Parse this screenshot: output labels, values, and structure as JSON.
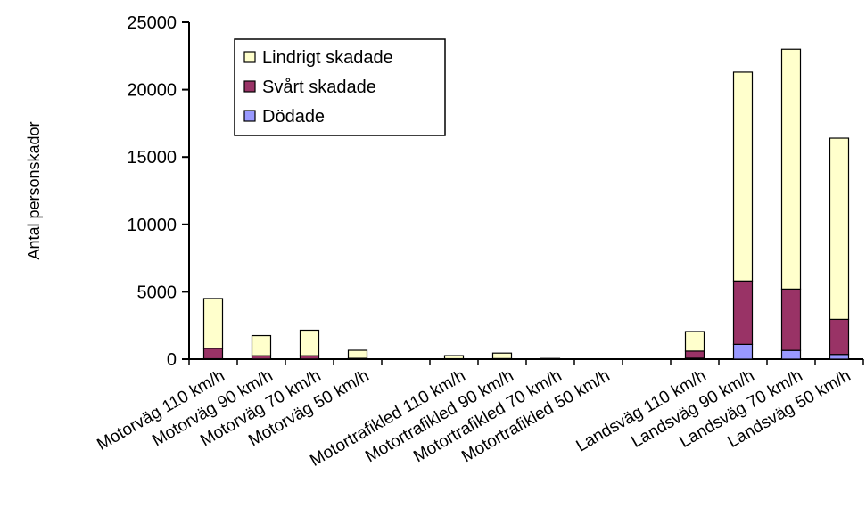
{
  "chart_data": {
    "type": "bar",
    "stacked": true,
    "ylabel": "Antal personskador",
    "ylim": [
      0,
      25000
    ],
    "yticks": [
      0,
      5000,
      10000,
      15000,
      20000,
      25000
    ],
    "grid": false,
    "legend_position": "top-left",
    "categories": [
      "Motorväg 110 km/h",
      "Motorväg 90  km/h",
      "Motorväg 70 km/h",
      "Motorväg 50 km/h",
      "",
      "Motortrafikled 110 km/h",
      "Motortrafikled 90 km/h",
      "Motortrafikled 70 km/h",
      "Motortrafikled 50 km/h",
      "",
      "Landsväg 110 km/h",
      "Landsväg 90 km/h",
      "Landsväg 70 km/h",
      "Landsväg 50 km/h"
    ],
    "series": [
      {
        "name": "Dödade",
        "color": "#9999ff",
        "values": [
          30,
          10,
          10,
          0,
          0,
          0,
          0,
          0,
          0,
          0,
          70,
          1100,
          650,
          350
        ]
      },
      {
        "name": "Svårt skadade",
        "color": "#993366",
        "values": [
          770,
          240,
          240,
          60,
          0,
          30,
          40,
          10,
          0,
          0,
          530,
          4700,
          4550,
          2600
        ]
      },
      {
        "name": "Lindrigt skadade",
        "color": "#ffffcc",
        "values": [
          3700,
          1500,
          1900,
          600,
          0,
          230,
          410,
          40,
          0,
          0,
          1450,
          15500,
          17800,
          13450
        ]
      }
    ],
    "legend_order": [
      "Lindrigt skadade",
      "Svårt skadade",
      "Dödade"
    ]
  }
}
